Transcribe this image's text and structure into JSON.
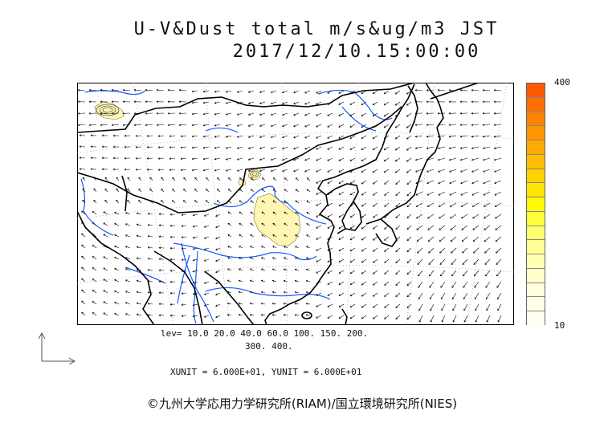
{
  "title": {
    "line1": "U-V&Dust total m/s&ug/m3 JST",
    "line2": "2017/12/10.15:00:00"
  },
  "colorbar": {
    "max_label": "400",
    "min_label": "10",
    "colors": [
      "#ff5a00",
      "#ff6e00",
      "#ff8200",
      "#ff9600",
      "#ffaa00",
      "#ffbe00",
      "#ffd200",
      "#ffe600",
      "#fffa00",
      "#ffff3c",
      "#ffff6e",
      "#ffff96",
      "#ffffb4",
      "#ffffcc",
      "#ffffdc",
      "#ffffe8",
      "#fffff0"
    ]
  },
  "levels": {
    "line1": "lev= 10.0 20.0 40.0 60.0 100. 150. 200.",
    "line2": "300. 400."
  },
  "units": "XUNIT = 6.000E+01, YUNIT = 6.000E+01",
  "credit": "©九州大学応用力学研究所(RIAM)/国立環境研究所(NIES)",
  "style": {
    "coast": "#000000",
    "river": "#1a5aff",
    "dust_fill": "#fff5b4",
    "grid": "#9a9a9a",
    "arrow": "#000000"
  }
}
